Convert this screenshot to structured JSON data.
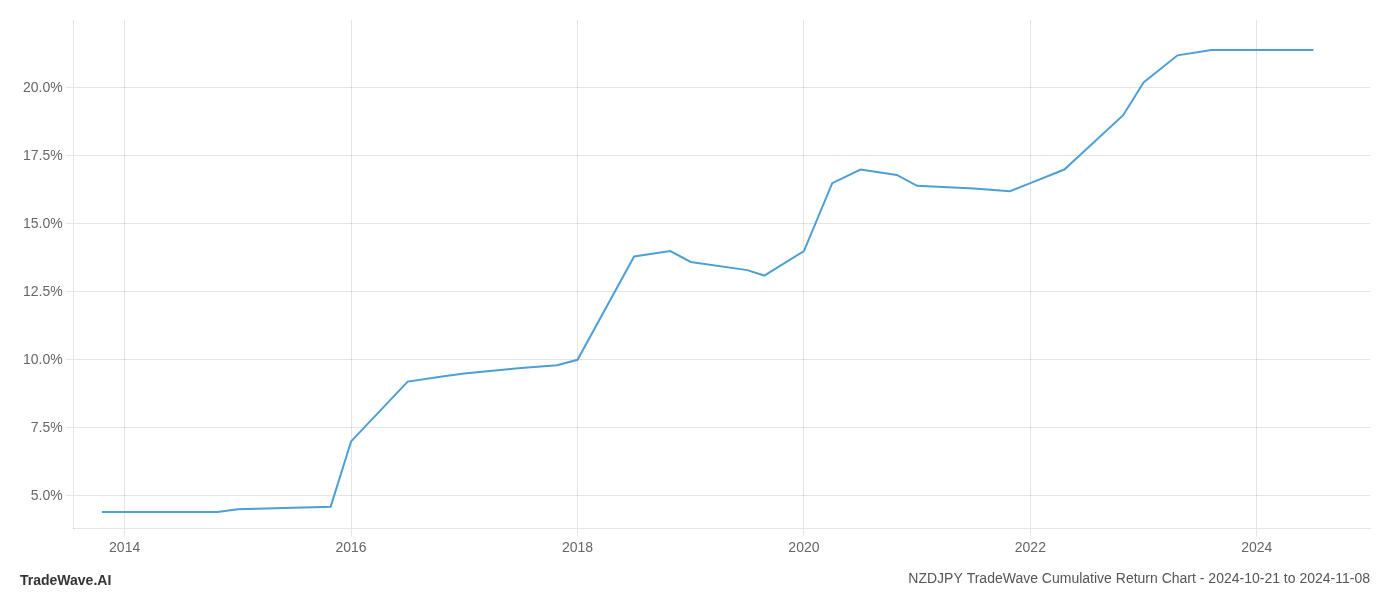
{
  "chart_data": {
    "type": "line",
    "title": "NZDJPY TradeWave Cumulative Return Chart - 2024-10-21 to 2024-11-08",
    "annotations": [
      "TradeWave.AI"
    ],
    "x": [
      2013.8,
      2014.0,
      2014.82,
      2015.0,
      2015.82,
      2016.0,
      2016.5,
      2016.82,
      2017.0,
      2017.5,
      2017.82,
      2018.0,
      2018.5,
      2018.82,
      2019.0,
      2019.5,
      2019.65,
      2020.0,
      2020.25,
      2020.5,
      2020.82,
      2021.0,
      2021.5,
      2021.82,
      2022.0,
      2022.3,
      2022.82,
      2023.0,
      2023.3,
      2023.6,
      2023.82,
      2024.0,
      2024.5
    ],
    "values": [
      4.4,
      4.4,
      4.4,
      4.5,
      4.6,
      7.0,
      9.2,
      9.4,
      9.5,
      9.7,
      9.8,
      10.0,
      13.8,
      14.0,
      13.6,
      13.3,
      13.1,
      14.0,
      16.5,
      17.0,
      16.8,
      16.4,
      16.3,
      16.2,
      16.5,
      17.0,
      19.0,
      20.2,
      21.2,
      21.4,
      21.4,
      21.4,
      21.4
    ],
    "color": "#4d9fd6",
    "xlim": [
      2013.55,
      2025.0
    ],
    "xticks": [
      2014,
      2016,
      2018,
      2020,
      2022,
      2024
    ],
    "ylim": [
      3.8,
      22.5
    ],
    "yticks": [
      {
        "value": 5.0,
        "label": "5.0%"
      },
      {
        "value": 7.5,
        "label": "7.5%"
      },
      {
        "value": 10.0,
        "label": "10.0%"
      },
      {
        "value": 12.5,
        "label": "12.5%"
      },
      {
        "value": 15.0,
        "label": "15.0%"
      },
      {
        "value": 17.5,
        "label": "17.5%"
      },
      {
        "value": 20.0,
        "label": "20.0%"
      }
    ],
    "grid": true
  }
}
